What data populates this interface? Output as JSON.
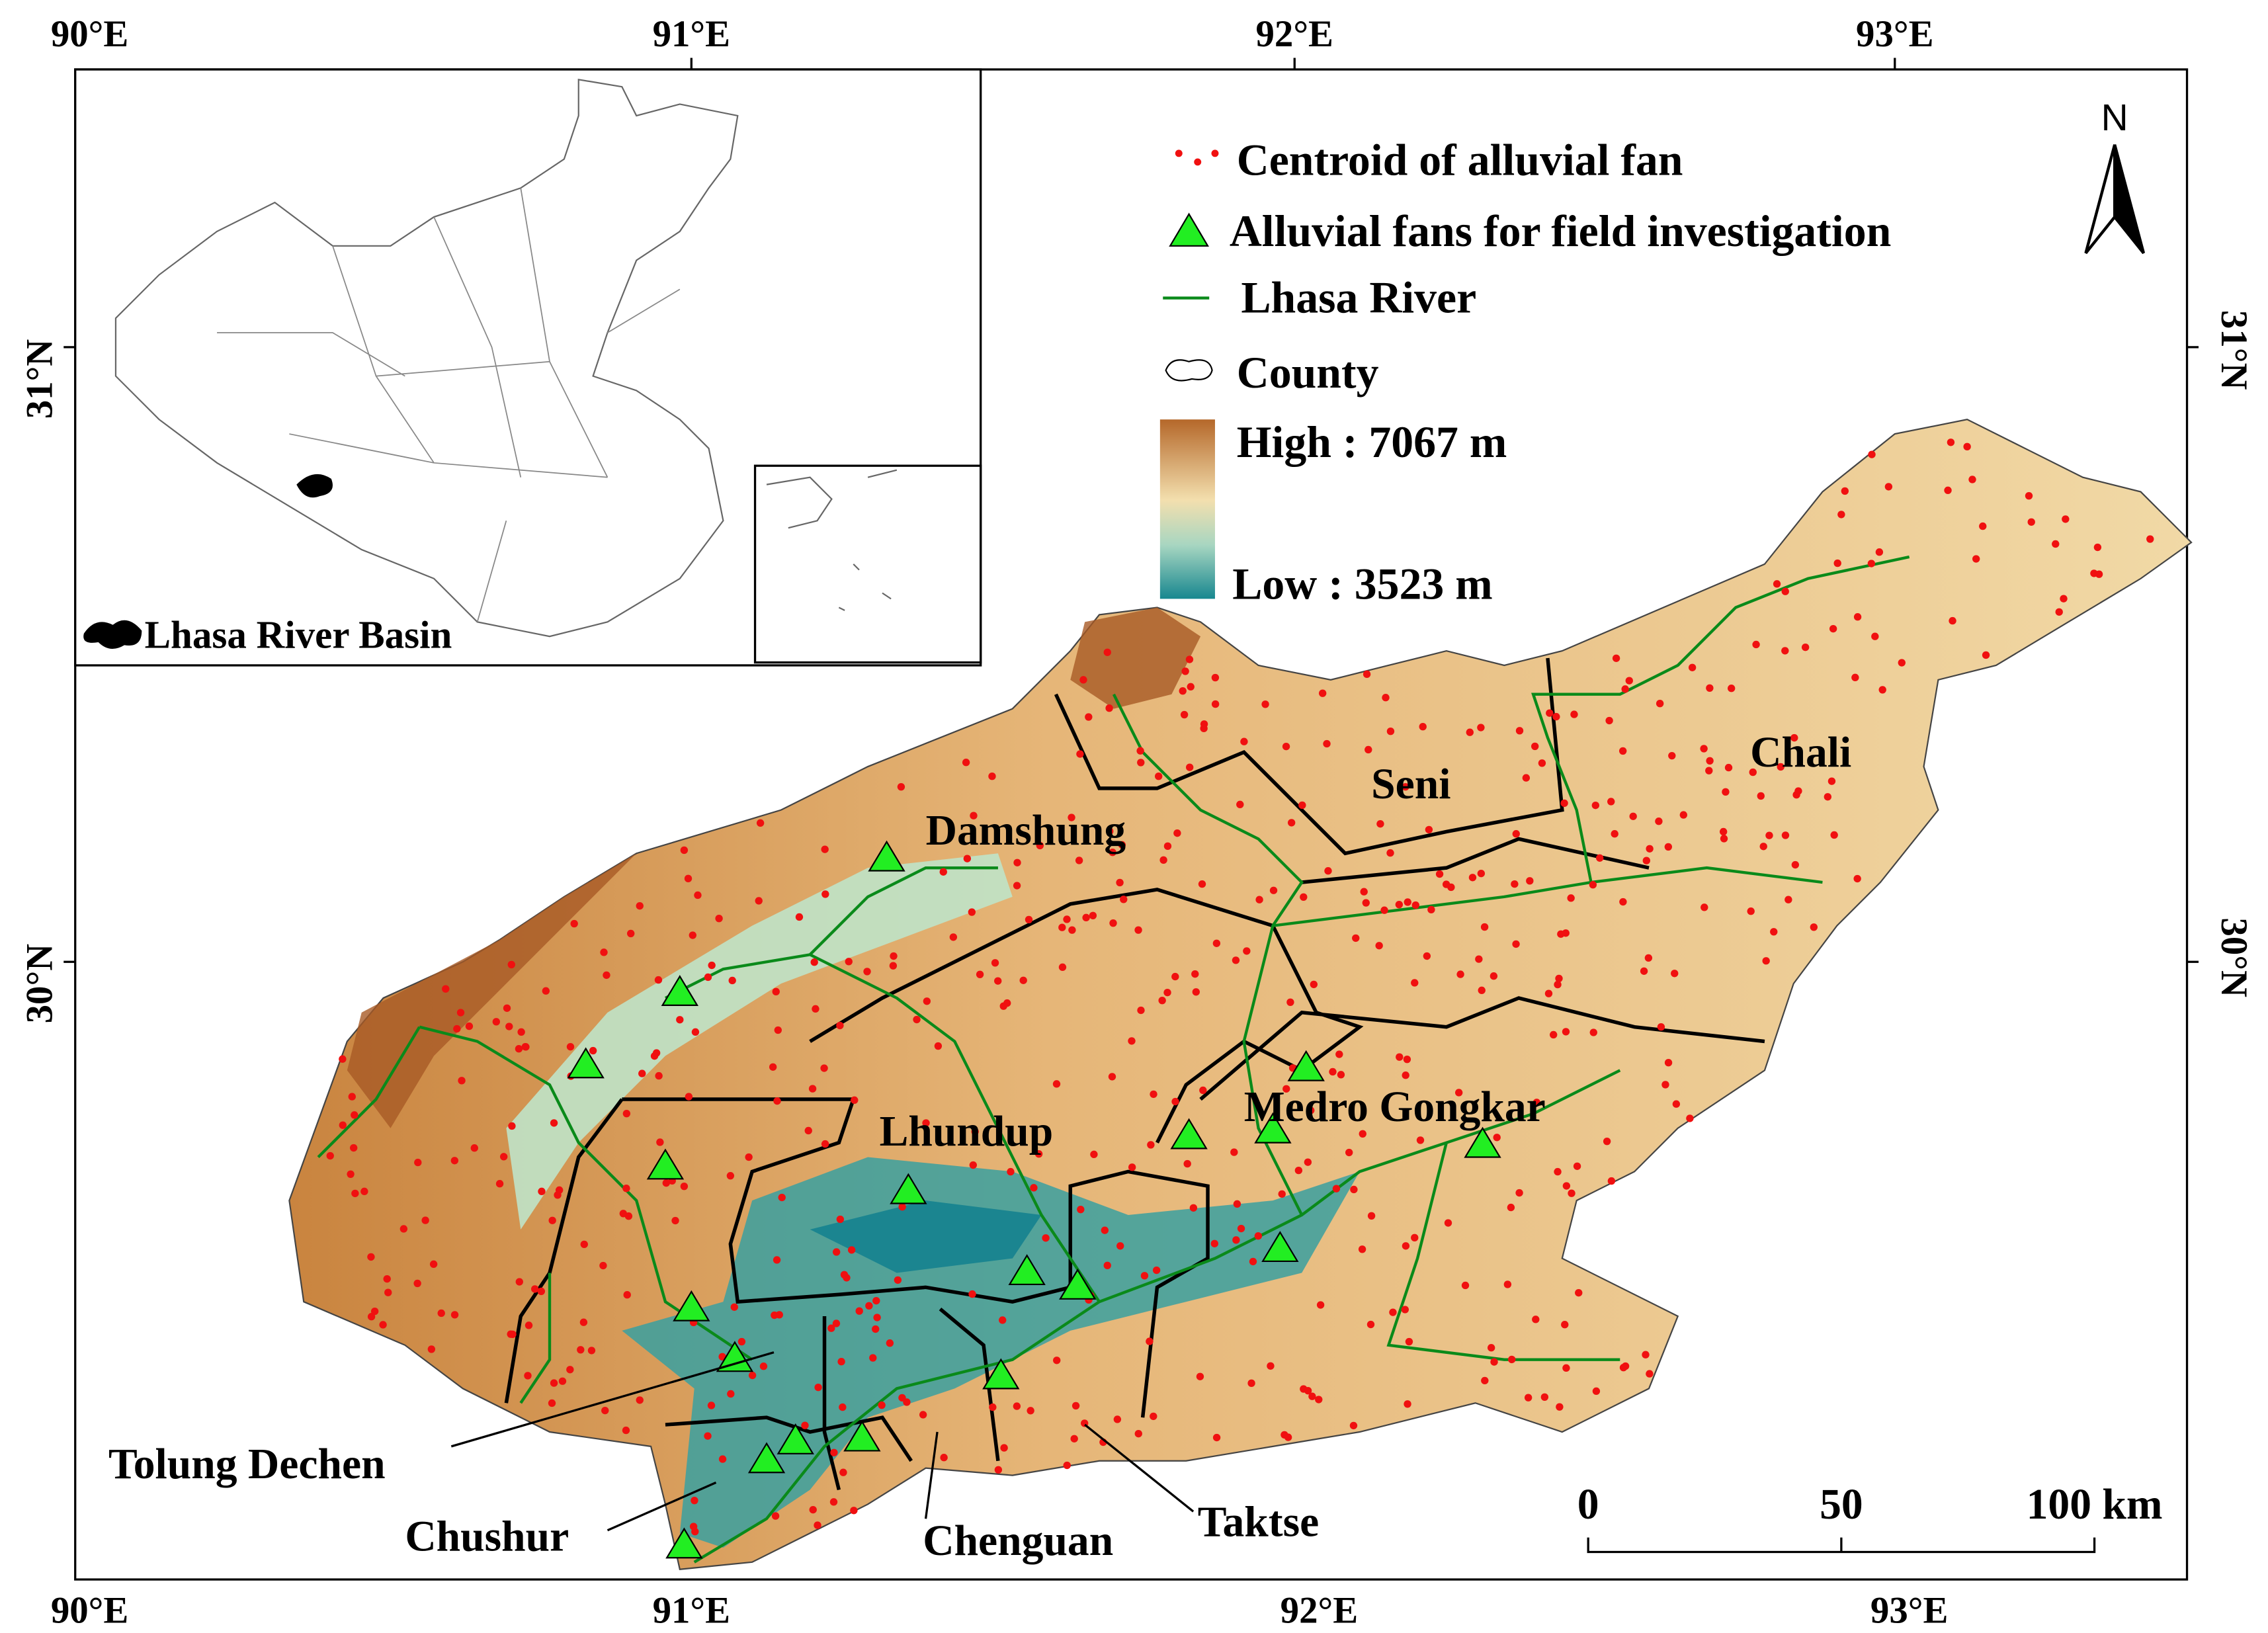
{
  "frame": {
    "top_labels": [
      "90°E",
      "91°E",
      "92°E",
      "93°E"
    ],
    "bottom_labels": [
      "90°E",
      "91°E",
      "92°E",
      "93°E"
    ],
    "left_labels": [
      "31°N",
      "30°N"
    ],
    "right_labels": [
      "31°N",
      "30°N"
    ]
  },
  "inset": {
    "label": "Lhasa River Basin"
  },
  "north": "N",
  "legend": {
    "items": [
      "Centroid of alluvial fan",
      "Alluvial fans for field investigation",
      "Lhasa River",
      "County"
    ],
    "high": "High : 7067 m",
    "low": "Low : 3523 m"
  },
  "counties": [
    "Damshung",
    "Seni",
    "Chali",
    "Lhundup",
    "Medro Gongkar",
    "Tolung Dechen",
    "Chushur",
    "Chenguan",
    "Taktse"
  ],
  "scale_bar": {
    "labels": [
      "0",
      "50",
      "100 km"
    ]
  }
}
